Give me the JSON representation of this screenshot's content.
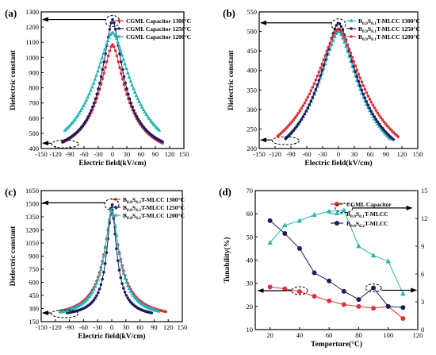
{
  "chart_data": [
    {
      "panel": "(a)",
      "type": "line",
      "xlabel": "Electric field(kV/cm)",
      "ylabel": "Dielectric constant",
      "xlim": [
        -150,
        150
      ],
      "ylim": [
        400,
        1300
      ],
      "xticks": [
        "-150",
        "-120",
        "-90",
        "-60",
        "-30",
        "0",
        "30",
        "60",
        "90",
        "120",
        "150"
      ],
      "yticks": [
        "400",
        "500",
        "600",
        "700",
        "800",
        "900",
        "1000",
        "1100",
        "1200",
        "1300"
      ],
      "legend_position": "top-right",
      "series": [
        {
          "name": "CGML Capacitor  1300°C",
          "color": "#e0303c",
          "marker": "circle",
          "peak": 1085,
          "ends": [
            440,
            435
          ],
          "xr": [
            -105,
            105
          ],
          "w": 36
        },
        {
          "name": "CGML Capacitor  1250°C",
          "color": "#1b1f5e",
          "marker": "circle",
          "peak": 1250,
          "ends": [
            445,
            445
          ],
          "xr": [
            -105,
            105
          ],
          "w": 30
        },
        {
          "name": "CGML Capacitor  1200°C",
          "color": "#21b5b5",
          "marker": "triangle",
          "peak": 1165,
          "ends": [
            520,
            515
          ],
          "xr": [
            -100,
            100
          ],
          "w": 55
        }
      ]
    },
    {
      "panel": "(b)",
      "type": "line",
      "xlabel": "Electric field(kV/cm)",
      "ylabel": "Dielectric constant",
      "xlim": [
        -150,
        150
      ],
      "ylim": [
        200,
        550
      ],
      "xticks": [
        "-150",
        "-120",
        "-90",
        "-60",
        "-30",
        "0",
        "30",
        "60",
        "90",
        "120",
        "150"
      ],
      "yticks": [
        "200",
        "250",
        "300",
        "350",
        "400",
        "450",
        "500",
        "550"
      ],
      "legend_position": "top-right",
      "series": [
        {
          "name": "B0.9S0.1T-MLCC  1300°C",
          "color": "#21b5b5",
          "marker": "triangle",
          "peak": 500,
          "ends": [
            228,
            222
          ],
          "xr": [
            -100,
            100
          ],
          "w": 55
        },
        {
          "name": "B0.9S0.1T-MLCC  1250°C",
          "color": "#1b1f5e",
          "marker": "circle",
          "peak": 522,
          "ends": [
            225,
            222
          ],
          "xr": [
            -100,
            105
          ],
          "w": 52
        },
        {
          "name": "B0.9S0.1T-MLCC  1200°C",
          "color": "#e0303c",
          "marker": "circle",
          "peak": 507,
          "ends": [
            232,
            228
          ],
          "xr": [
            -115,
            115
          ],
          "w": 65
        }
      ]
    },
    {
      "panel": "(c)",
      "type": "line",
      "xlabel": "Electric field(kV/cm)",
      "ylabel": "Dielectric constant",
      "xlim": [
        -150,
        150
      ],
      "ylim": [
        150,
        1650
      ],
      "xticks": [
        "-150",
        "-120",
        "-90",
        "-60",
        "-30",
        "0",
        "30",
        "60",
        "90",
        "120",
        "150"
      ],
      "yticks": [
        "150",
        "300",
        "450",
        "600",
        "750",
        "900",
        "1050",
        "1200",
        "1350",
        "1500",
        "1650"
      ],
      "legend_position": "top-right",
      "series": [
        {
          "name": "B0.8S0.2T-MLCC  1300°C",
          "color": "#e0303c",
          "marker": "circle",
          "peak": 1400,
          "ends": [
            270,
            265
          ],
          "xr": [
            -110,
            115
          ],
          "w": 22
        },
        {
          "name": "B0.8S0.2T-MLCC  1250°C",
          "color": "#1b1f5e",
          "marker": "circle",
          "peak": 1510,
          "ends": [
            250,
            250
          ],
          "xr": [
            -95,
            85
          ],
          "w": 13
        },
        {
          "name": "B0.8S0.2T-MLCC  1200°C",
          "color": "#21b5b5",
          "marker": "triangle",
          "peak": 1455,
          "ends": [
            260,
            270
          ],
          "xr": [
            -110,
            100
          ],
          "w": 20
        }
      ]
    },
    {
      "panel": "(d)",
      "type": "line",
      "xlabel": "Temperture(°C)",
      "ylabel": "Tunability(%)",
      "xlim": [
        10,
        120
      ],
      "ylim": [
        10,
        70
      ],
      "y2lim": [
        0,
        15
      ],
      "xticks": [
        "20",
        "40",
        "60",
        "80",
        "100",
        "120"
      ],
      "yticks": [
        "10",
        "20",
        "30",
        "40",
        "50",
        "60",
        "70"
      ],
      "y2ticks": [
        "0",
        "3",
        "6",
        "9",
        "12",
        "15"
      ],
      "legend_position": "top-right",
      "series": [
        {
          "name": "CGML Capacitor",
          "color": "#e0303c",
          "marker": "circle",
          "axis": "right",
          "x": [
            20,
            30,
            40,
            50,
            60,
            70,
            80,
            90,
            100,
            110
          ],
          "y": [
            4.6,
            4.4,
            4.1,
            3.6,
            3.1,
            2.7,
            2.5,
            2.3,
            2.5,
            1.2
          ]
        },
        {
          "name": "B0.9S0.1T-MLCC",
          "color": "#21b5b5",
          "marker": "triangle",
          "axis": "left",
          "x": [
            20,
            30,
            40,
            50,
            60,
            70,
            80,
            90,
            100,
            110
          ],
          "y": [
            47.5,
            55,
            57,
            59.5,
            61,
            61.5,
            46,
            42,
            39.5,
            25.5
          ]
        },
        {
          "name": "B0.8S0.2T-MLCC",
          "color": "#1b1f5e",
          "marker": "circle",
          "axis": "left",
          "x": [
            20,
            30,
            40,
            50,
            60,
            70,
            80,
            90,
            100,
            110
          ],
          "y": [
            57,
            51.5,
            45,
            34.5,
            31,
            26.5,
            23,
            28,
            20,
            19.5
          ]
        }
      ]
    }
  ],
  "legend_labels": {
    "a": [
      "CGML Capacitor  1300°C",
      "CGML Capacitor  1250°C",
      "CGML Capacitor  1200°C"
    ],
    "b": [
      [
        "B",
        "0.9",
        "S",
        "0.1",
        "T-MLCC  1300°C"
      ],
      [
        "B",
        "0.9",
        "S",
        "0.1",
        "T-MLCC  1250°C"
      ],
      [
        "B",
        "0.9",
        "S",
        "0.1",
        "T-MLCC  1200°C"
      ]
    ],
    "c": [
      [
        "B",
        "0.8",
        "S",
        "0.2",
        "T-MLCC   1300°C"
      ],
      [
        "B",
        "0.8",
        "S",
        "0.2",
        "T-MLCC   1250°C"
      ],
      [
        "B",
        "0.8",
        "S",
        "0.2",
        "T-MLCC   1200°C"
      ]
    ],
    "d": [
      [
        "CGML Capacitor"
      ],
      [
        "B",
        "0.9",
        "S",
        "0.1",
        "T-MLCC"
      ],
      [
        "B",
        "0.8",
        "S",
        "0.2",
        "T-MLCC"
      ]
    ]
  }
}
